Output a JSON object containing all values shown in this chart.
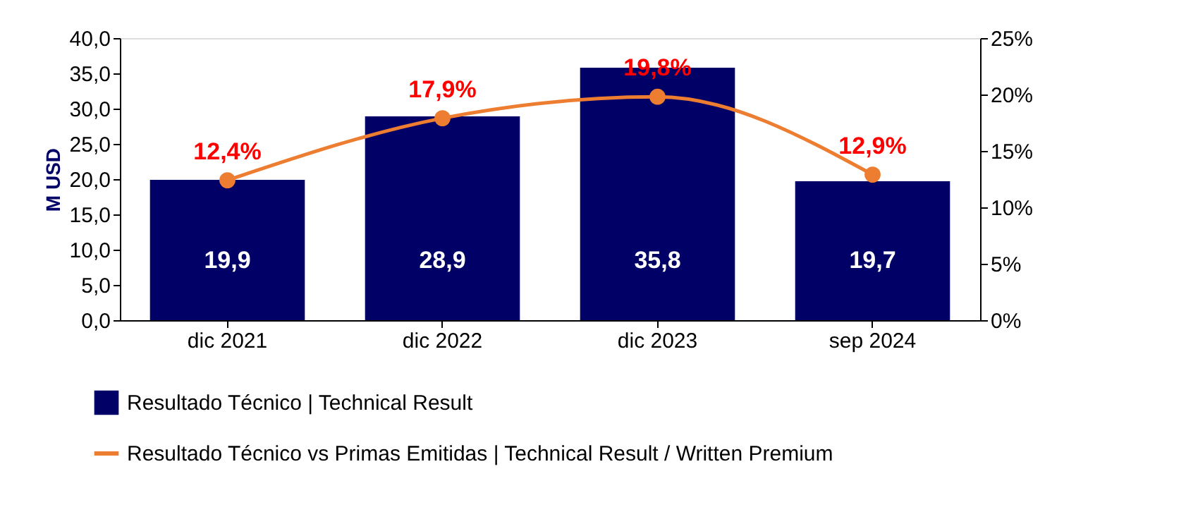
{
  "chart_data": {
    "type": "bar",
    "categories": [
      "dic 2021",
      "dic 2022",
      "dic 2023",
      "sep 2024"
    ],
    "ylabel": "M  USD",
    "series": [
      {
        "name": "Resultado Técnico | Technical Result",
        "color": "#000066",
        "values": [
          19.9,
          28.9,
          35.8,
          19.7
        ],
        "value_labels": [
          "19,9",
          "28,9",
          "35,8",
          "19,7"
        ]
      },
      {
        "name": "Resultado Técnico vs Primas Emitidas | Technical Result / Written Premium",
        "type": "line",
        "axis": "y2",
        "color": "#ed7d31",
        "values": [
          12.4,
          17.9,
          19.8,
          12.9
        ],
        "value_labels": [
          "12,4%",
          "17,9%",
          "19,8%",
          "12,9%"
        ],
        "marker": "circle"
      }
    ],
    "ylim": [
      0,
      40
    ],
    "yticks": [
      {
        "value": 0,
        "label": "0,0"
      },
      {
        "value": 5,
        "label": "5,0"
      },
      {
        "value": 10,
        "label": "10,0"
      },
      {
        "value": 15,
        "label": "15,0"
      },
      {
        "value": 20,
        "label": "20,0"
      },
      {
        "value": 25,
        "label": "25,0"
      },
      {
        "value": 30,
        "label": "30,0"
      },
      {
        "value": 35,
        "label": "35,0"
      },
      {
        "value": 40,
        "label": "40,0"
      }
    ],
    "y2lim": [
      0,
      25
    ],
    "y2ticks": [
      {
        "value": 0,
        "label": "0%"
      },
      {
        "value": 5,
        "label": "5%"
      },
      {
        "value": 10,
        "label": "10%"
      },
      {
        "value": 15,
        "label": "15%"
      },
      {
        "value": 20,
        "label": "20%"
      },
      {
        "value": 25,
        "label": "25%"
      }
    ],
    "legend": "bottom",
    "grid": false
  }
}
